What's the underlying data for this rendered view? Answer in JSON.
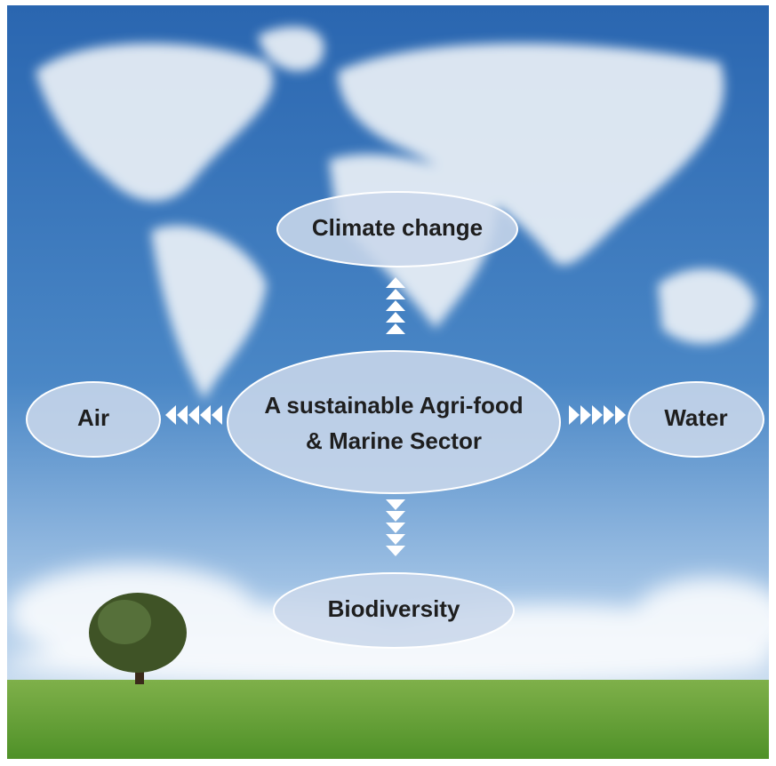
{
  "center": {
    "lines": [
      "A sustainable Agri-food",
      "& Marine Sector"
    ]
  },
  "nodes": [
    {
      "label": "Climate change"
    },
    {
      "label": "Air"
    },
    {
      "label": "Water"
    },
    {
      "label": "Biodiversity"
    }
  ]
}
